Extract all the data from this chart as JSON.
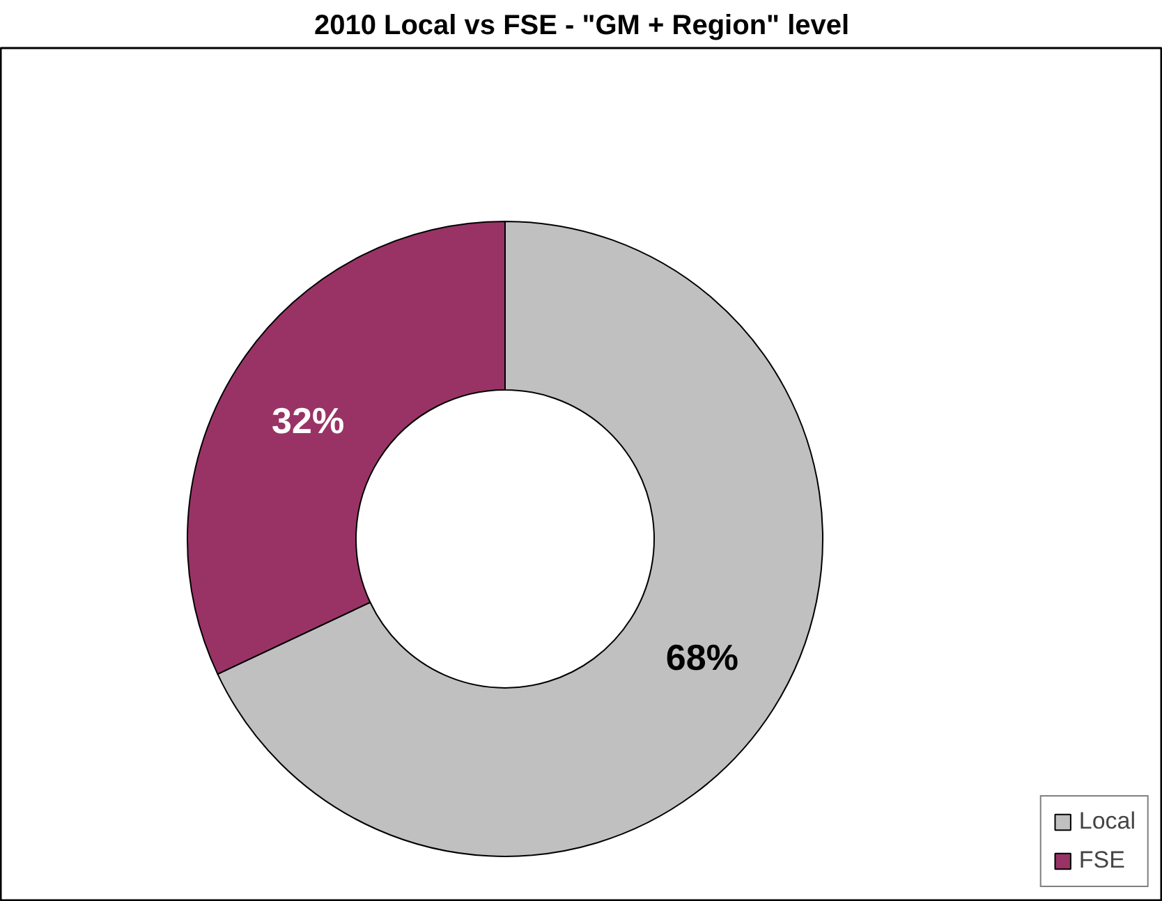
{
  "chart_data": {
    "type": "donut",
    "title": "2010 Local vs FSE - \"GM + Region\" level",
    "categories": [
      "Local",
      "FSE"
    ],
    "values": [
      68,
      32
    ],
    "colors": [
      "#c0c0c0",
      "#993366"
    ],
    "value_labels": [
      "68%",
      "32%"
    ],
    "legend": "bottom right"
  }
}
